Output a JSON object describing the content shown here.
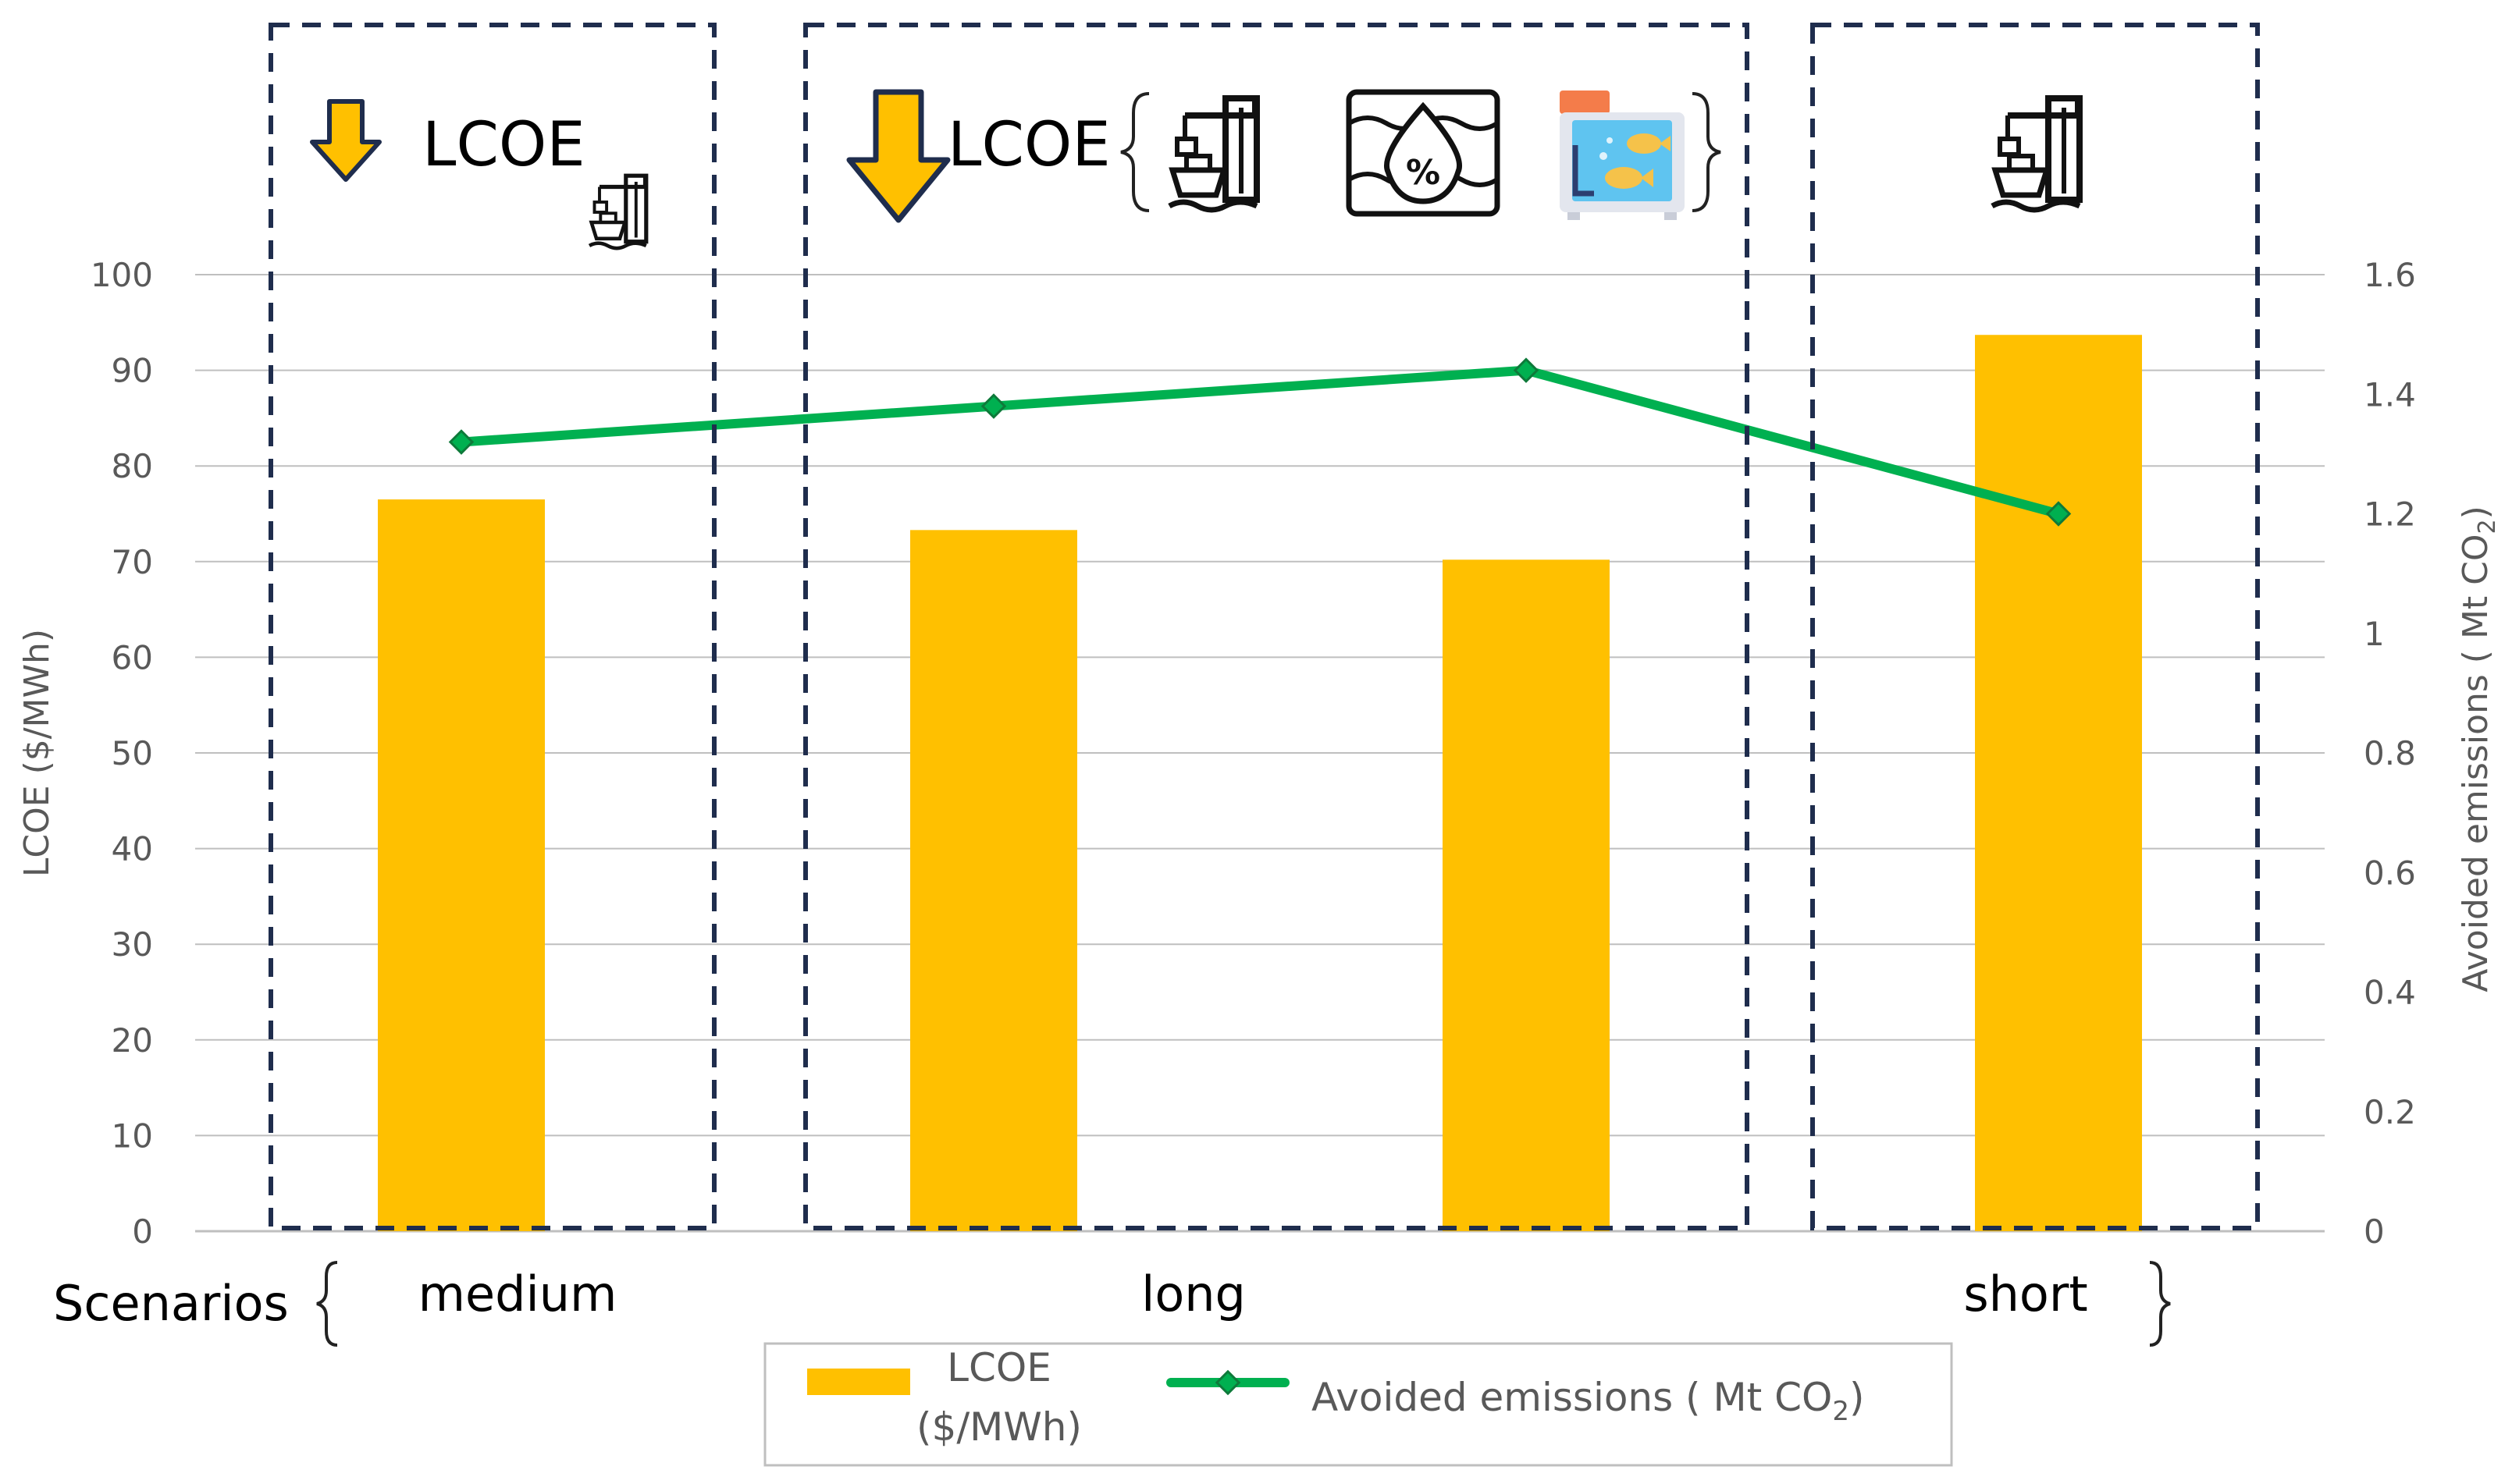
{
  "chart_data": {
    "type": "bar",
    "categories": [
      "medium",
      "long",
      "long",
      "short"
    ],
    "series": [
      {
        "name": "LCOE ($/MWh)",
        "kind": "bar",
        "axis": "left",
        "color": "#FFC000",
        "values": [
          76.5,
          73.3,
          70.2,
          93.7
        ]
      },
      {
        "name": "Avoided emissions ( Mt CO2)",
        "kind": "line",
        "axis": "right",
        "color": "#00B050",
        "values": [
          1.32,
          1.38,
          1.44,
          1.2
        ]
      }
    ],
    "ylabel": "LCOE ($/MWh)",
    "y2label": "Avoided emissions ( Mt CO2)",
    "ylim": [
      0,
      100
    ],
    "y2lim": [
      0,
      1.6
    ],
    "yticks": [
      "0",
      "10",
      "20",
      "30",
      "40",
      "50",
      "60",
      "70",
      "80",
      "90",
      "100"
    ],
    "y2ticks": [
      "0",
      "0.2",
      "0.4",
      "0.6",
      "0.8",
      "1",
      "1.2",
      "1.4",
      "1.6"
    ],
    "grid": true,
    "legend_position": "bottom",
    "scenarios_label": "Scenarios",
    "scenario_groups": [
      "medium",
      "long",
      "short"
    ],
    "banner_texts": [
      "LCOE",
      "LCOE"
    ],
    "legend": {
      "bar_label_line1": "LCOE",
      "bar_label_line2": "($/MWh)",
      "line_label": "Avoided emissions ( Mt CO",
      "line_label_sub": "2",
      "line_label_end": ")"
    },
    "y2label_parts": {
      "main": "Avoided emissions ( Mt CO",
      "sub": "2",
      "end": ")"
    },
    "icons": [
      "down-arrow-icon",
      "port-crane-ship-icon",
      "water-percent-icon",
      "aquarium-fish-icon"
    ]
  }
}
